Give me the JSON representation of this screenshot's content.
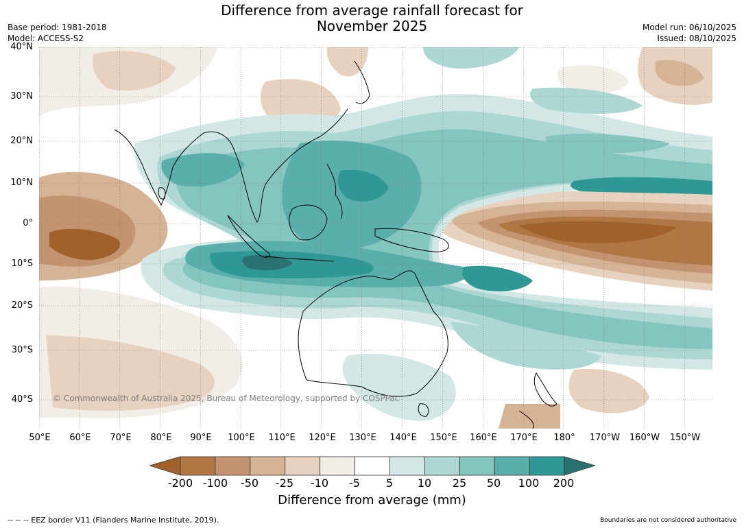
{
  "header": {
    "title_line1": "Difference from average rainfall forecast for",
    "title_line2": "November 2025",
    "base_period": "Base period: 1981-2018",
    "model": "Model: ACCESS-S2",
    "model_run": "Model run: 06/10/2025",
    "issued": "Issued: 08/10/2025"
  },
  "map": {
    "lat_labels": [
      "40°N",
      "30°N",
      "20°N",
      "10°N",
      "0°",
      "10°S",
      "20°S",
      "30°S",
      "40°S"
    ],
    "lon_labels": [
      "50°E",
      "60°E",
      "70°E",
      "80°E",
      "90°E",
      "100°E",
      "110°E",
      "120°E",
      "130°E",
      "140°E",
      "150°E",
      "160°E",
      "170°E",
      "180°",
      "170°W",
      "160°W",
      "150°W"
    ],
    "copyright": "© Commonwealth of Australia 2025, Bureau of Meteorology, supported by COSPPac"
  },
  "legend": {
    "tick_labels": [
      "-200",
      "-100",
      "-50",
      "-25",
      "-10",
      "-5",
      "5",
      "10",
      "25",
      "50",
      "100",
      "200"
    ],
    "title": "Difference from average (mm)",
    "colors": [
      "#a0622a",
      "#b07745",
      "#c49470",
      "#d5b394",
      "#e6d2be",
      "#f2ede6",
      "#ffffff",
      "#d3e8e6",
      "#acd7d3",
      "#85c5c0",
      "#5aafad",
      "#2e9895",
      "#2a7272"
    ]
  },
  "footer": {
    "eez_note": "--  --  -- EEZ border V11 (Flanders Marine Institute, 2019).",
    "boundaries_note": "Boundaries are not considered authoritative"
  }
}
